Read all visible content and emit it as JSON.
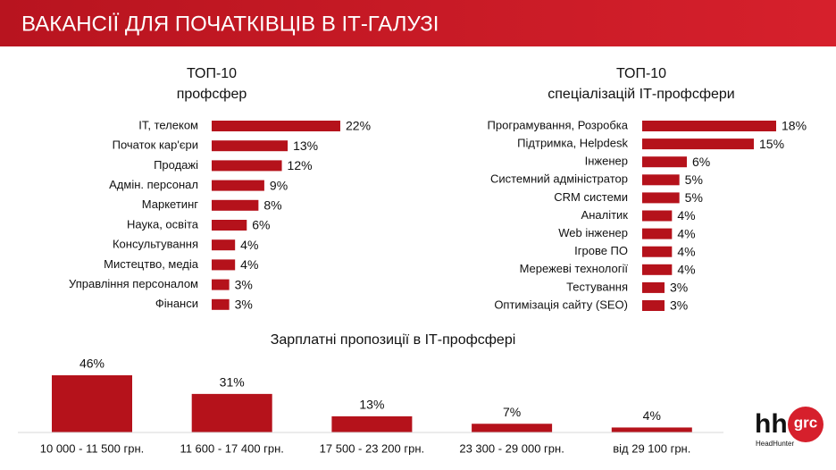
{
  "header": {
    "title": "ВАКАНСІЇ ДЛЯ ПОЧАТКІВЦІВ В ІТ-ГАЛУЗІ"
  },
  "logo": {
    "mark": "hh",
    "badge": "grc",
    "brand": "HeadHunter"
  },
  "chart_data": [
    {
      "type": "bar",
      "orientation": "horizontal",
      "title": "ТОП-10",
      "subtitle": "профсфер",
      "color": "#b5121b",
      "categories": [
        "ІТ, телеком",
        "Початок кар'єри",
        "Продажі",
        "Адмін. персонал",
        "Маркетинг",
        "Наука, освіта",
        "Консультування",
        "Мистецтво, медіа",
        "Управління персоналом",
        "Фінанси"
      ],
      "values": [
        22,
        13,
        12,
        9,
        8,
        6,
        4,
        4,
        3,
        3
      ],
      "value_labels": [
        "22%",
        "13%",
        "12%",
        "9%",
        "8%",
        "6%",
        "4%",
        "4%",
        "3%",
        "3%"
      ]
    },
    {
      "type": "bar",
      "orientation": "horizontal",
      "title": "ТОП-10",
      "subtitle": "спеціалізацій ІТ-профсфери",
      "color": "#b5121b",
      "categories": [
        "Програмування, Розробка",
        "Підтримка, Helpdesk",
        "Інженер",
        "Системний адміністратор",
        "CRM системи",
        "Аналітик",
        "Web інженер",
        "Ігрове ПО",
        "Мережеві технології",
        "Тестування",
        "Оптимізація сайту (SEO)"
      ],
      "values": [
        18,
        15,
        6,
        5,
        5,
        4,
        4,
        4,
        4,
        3,
        3
      ],
      "value_labels": [
        "18%",
        "15%",
        "6%",
        "5%",
        "5%",
        "4%",
        "4%",
        "4%",
        "4%",
        "3%",
        "3%"
      ]
    },
    {
      "type": "bar",
      "orientation": "vertical",
      "title": "Зарплатні пропозиції в ІТ-профсфері",
      "color": "#b5121b",
      "categories": [
        "10 000 - 11 500 грн.",
        "11 600 - 17 400 грн.",
        "17 500 - 23 200 грн.",
        "23 300 - 29 000 грн.",
        "від 29 100 грн."
      ],
      "values": [
        46,
        31,
        13,
        7,
        4
      ],
      "value_labels": [
        "46%",
        "31%",
        "13%",
        "7%",
        "4%"
      ]
    }
  ]
}
